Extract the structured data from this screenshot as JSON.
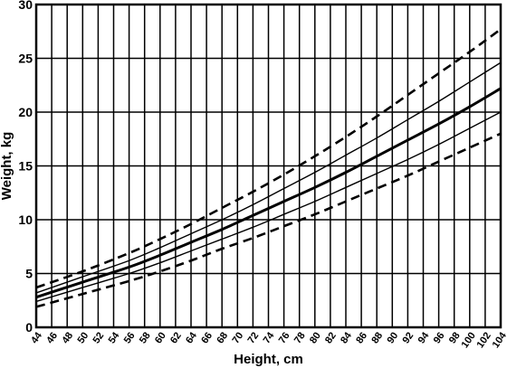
{
  "chart_data": {
    "type": "line",
    "title": "",
    "xlabel": "Height, cm",
    "ylabel": "Weight, kg",
    "xlim": [
      44,
      104
    ],
    "ylim": [
      0,
      30
    ],
    "x_ticks": [
      44,
      46,
      48,
      50,
      52,
      54,
      56,
      58,
      60,
      62,
      64,
      66,
      68,
      70,
      72,
      74,
      76,
      78,
      80,
      82,
      84,
      86,
      88,
      90,
      92,
      94,
      96,
      98,
      100,
      102,
      104
    ],
    "y_ticks": [
      0,
      5,
      10,
      15,
      20,
      25,
      30
    ],
    "grid": true,
    "x": [
      44,
      50,
      56,
      60,
      64,
      68,
      72,
      76,
      80,
      84,
      88,
      92,
      96,
      100,
      104
    ],
    "series": [
      {
        "style": "dashed",
        "values": [
          3.7,
          5.2,
          6.9,
          8.2,
          9.6,
          11.1,
          12.6,
          14.2,
          15.9,
          17.7,
          19.6,
          21.6,
          23.6,
          25.6,
          27.7
        ]
      },
      {
        "style": "thin",
        "values": [
          3.2,
          4.7,
          6.2,
          7.4,
          8.7,
          10.0,
          11.4,
          12.9,
          14.4,
          16.0,
          17.6,
          19.3,
          21.0,
          22.8,
          24.6
        ]
      },
      {
        "style": "thick",
        "values": [
          2.8,
          4.2,
          5.6,
          6.7,
          7.9,
          9.1,
          10.4,
          11.7,
          13.0,
          14.4,
          15.9,
          17.4,
          18.9,
          20.5,
          22.2
        ]
      },
      {
        "style": "thin",
        "values": [
          2.4,
          3.7,
          5.0,
          6.0,
          7.1,
          8.2,
          9.3,
          10.5,
          11.7,
          13.0,
          14.3,
          15.6,
          17.0,
          18.5,
          20.0
        ]
      },
      {
        "style": "dashed",
        "values": [
          1.9,
          3.1,
          4.3,
          5.2,
          6.2,
          7.3,
          8.3,
          9.4,
          10.5,
          11.7,
          12.9,
          14.1,
          15.4,
          16.7,
          18.0
        ]
      }
    ]
  }
}
